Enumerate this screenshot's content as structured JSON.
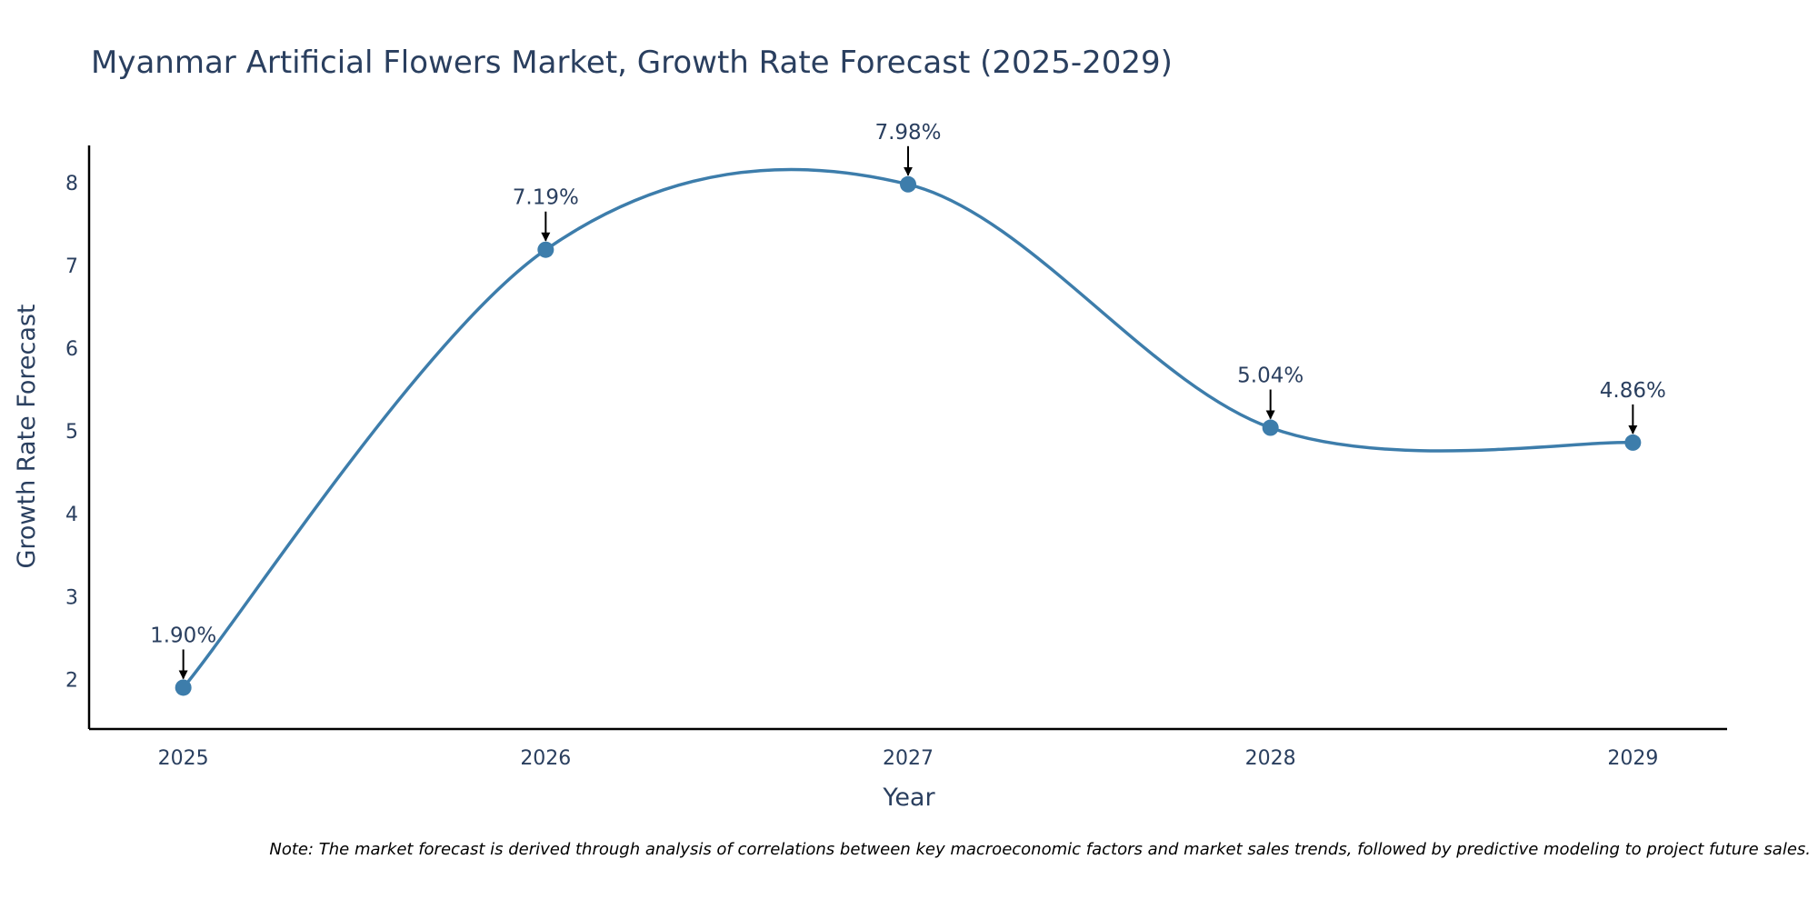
{
  "colors": {
    "line": "#3d7dab",
    "marker": "#3d7dab",
    "axis": "#000000",
    "arrow": "#000000",
    "text": "#2a3f5f"
  },
  "chart_data": {
    "type": "line",
    "title": "Myanmar Artificial Flowers Market, Growth Rate Forecast (2025-2029)",
    "xlabel": "Year",
    "ylabel": "Growth Rate Forecast",
    "x": [
      "2025",
      "2026",
      "2027",
      "2028",
      "2029"
    ],
    "series": [
      {
        "name": "Growth Rate Forecast",
        "values": [
          1.9,
          7.19,
          7.98,
          5.04,
          4.86
        ],
        "labels": [
          "1.90%",
          "7.19%",
          "7.98%",
          "5.04%",
          "4.86%"
        ]
      }
    ],
    "yticks": [
      2,
      3,
      4,
      5,
      6,
      7,
      8
    ],
    "ylim": [
      1.4,
      8.45
    ],
    "xlim": [
      2024.74,
      2029.26
    ],
    "line_shape": "spline",
    "grid": false,
    "legend": "none",
    "note": "Note: The market forecast is derived through analysis of correlations between key macroeconomic factors and market sales trends, followed by predictive modeling to project future sales."
  }
}
